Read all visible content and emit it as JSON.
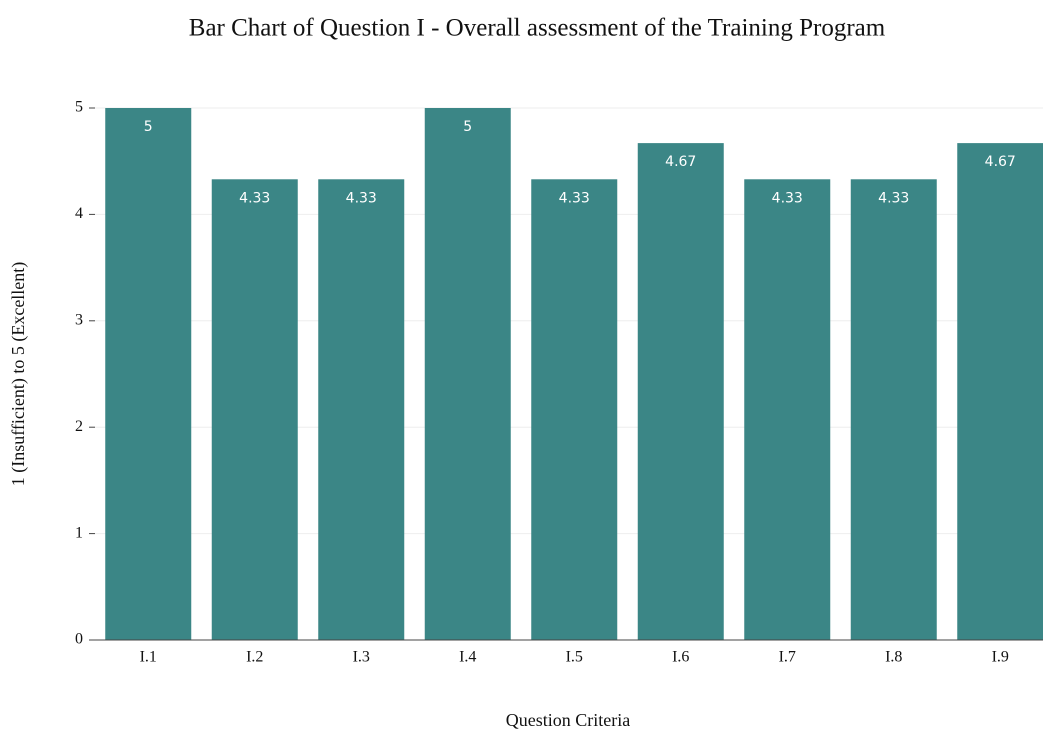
{
  "chart_data": {
    "type": "bar",
    "title": "Bar Chart of Question I - Overall assessment of the Training Program",
    "x_label": "Question Criteria",
    "y_label": "1 (Insufficient) to 5 (Excellent)",
    "categories": [
      "I.1",
      "I.2",
      "I.3",
      "I.4",
      "I.5",
      "I.6",
      "I.7",
      "I.8",
      "I.9"
    ],
    "values": [
      5,
      4.33,
      4.33,
      5,
      4.33,
      4.67,
      4.33,
      4.33,
      4.67
    ],
    "color": "#3b8686",
    "ylim": [
      0,
      5
    ],
    "yticks": [
      0,
      1,
      2,
      3,
      4,
      5
    ],
    "grid": true
  }
}
